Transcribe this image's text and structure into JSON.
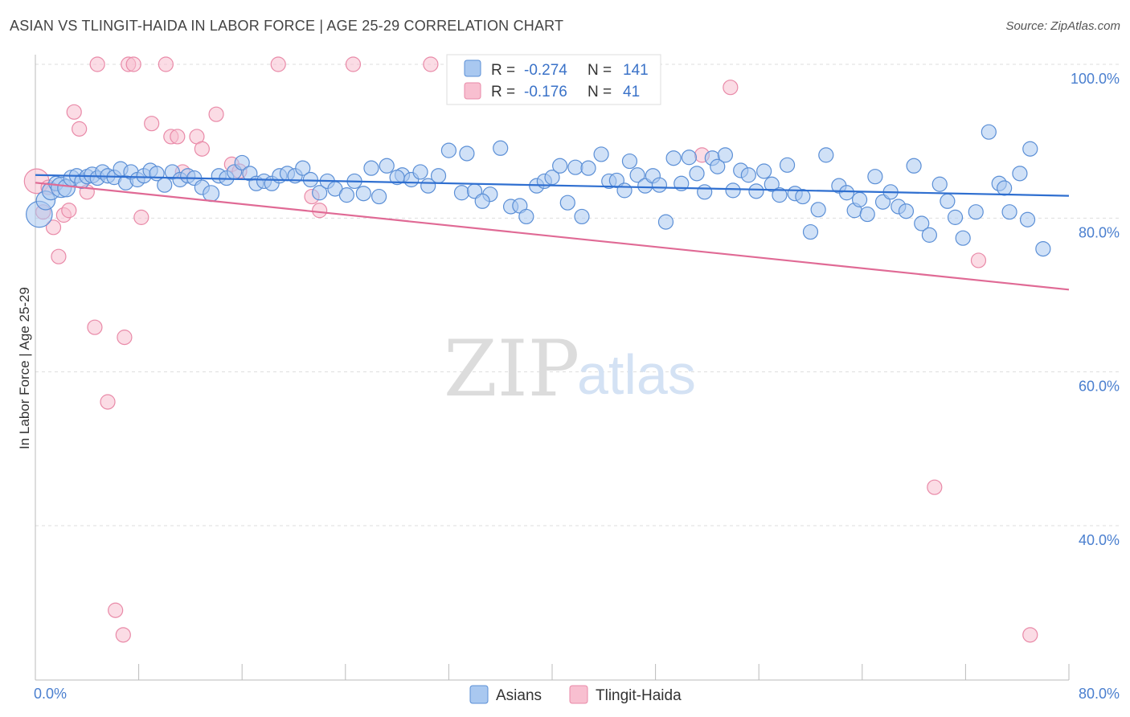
{
  "title": "ASIAN VS TLINGIT-HAIDA IN LABOR FORCE | AGE 25-29 CORRELATION CHART",
  "source": "Source: ZipAtlas.com",
  "watermark": {
    "zip": "ZIP",
    "atlas": "atlas"
  },
  "colors": {
    "asian_fill": "#a9c8f0",
    "asian_stroke": "#5b8fd6",
    "asian_line": "#2f6fd0",
    "tlingit_fill": "#f8bfd0",
    "tlingit_stroke": "#e98aa8",
    "tlingit_line": "#e06a95",
    "tick_label": "#4a7fcf",
    "grid": "#dddddd"
  },
  "legend": {
    "r_label": "R =",
    "n_label": "N =",
    "rows": [
      {
        "r": "-0.274",
        "n": "141"
      },
      {
        "r": "-0.176",
        "n": "41"
      }
    ]
  },
  "chart_data": {
    "type": "scatter",
    "xlabel": "",
    "ylabel": "In Labor Force | Age 25-29",
    "xlim": [
      0,
      80
    ],
    "ylim": [
      22,
      101
    ],
    "x_tick_labels": {
      "left": "0.0%",
      "right": "80.0%"
    },
    "y_ticks": [
      {
        "value": 100,
        "label": "100.0%"
      },
      {
        "value": 80,
        "label": "80.0%"
      },
      {
        "value": 60,
        "label": "60.0%"
      },
      {
        "value": 40,
        "label": "40.0%"
      }
    ],
    "grid": true,
    "legend_position": "top-center",
    "series": [
      {
        "name": "Asians",
        "trend": {
          "x": [
            0,
            80
          ],
          "y": [
            85.6,
            82.9
          ]
        },
        "points": [
          [
            0.3,
            80.5,
            1.8
          ],
          [
            0.8,
            82.3,
            1.3
          ],
          [
            1.2,
            83.5,
            1.2
          ],
          [
            1.6,
            84.5,
            1.0
          ],
          [
            2.0,
            84.0,
            1.4
          ],
          [
            2.4,
            83.9,
            1.2
          ],
          [
            2.8,
            85.2,
            1.1
          ],
          [
            3.2,
            85.5,
            1.0
          ],
          [
            3.6,
            84.8,
            1.0
          ],
          [
            4.0,
            85.4,
            1.0
          ],
          [
            4.4,
            85.6,
            1.1
          ],
          [
            4.8,
            85.2,
            1.0
          ],
          [
            5.2,
            86.0,
            1.0
          ],
          [
            5.6,
            85.5,
            1.0
          ],
          [
            6.1,
            85.3,
            1.0
          ],
          [
            6.6,
            86.4,
            1.0
          ],
          [
            7.0,
            84.6,
            1.0
          ],
          [
            7.4,
            86.0,
            1.0
          ],
          [
            7.9,
            85.0,
            1.0
          ],
          [
            8.4,
            85.5,
            1.0
          ],
          [
            8.9,
            86.2,
            1.0
          ],
          [
            9.4,
            85.8,
            1.0
          ],
          [
            10.0,
            84.3,
            1.0
          ],
          [
            10.6,
            86.0,
            1.0
          ],
          [
            11.2,
            85.0,
            1.0
          ],
          [
            11.8,
            85.5,
            1.0
          ],
          [
            12.3,
            85.2,
            1.0
          ],
          [
            12.9,
            84.0,
            1.0
          ],
          [
            13.6,
            83.2,
            1.1
          ],
          [
            14.2,
            85.5,
            1.0
          ],
          [
            14.8,
            85.2,
            1.0
          ],
          [
            15.4,
            86.0,
            1.0
          ],
          [
            16.0,
            87.2,
            1.0
          ],
          [
            16.6,
            85.8,
            1.0
          ],
          [
            17.1,
            84.5,
            1.0
          ],
          [
            17.7,
            84.8,
            1.0
          ],
          [
            18.3,
            84.5,
            1.0
          ],
          [
            18.9,
            85.5,
            1.0
          ],
          [
            19.5,
            85.8,
            1.0
          ],
          [
            20.1,
            85.5,
            1.0
          ],
          [
            20.7,
            86.5,
            1.0
          ],
          [
            21.3,
            85.0,
            1.0
          ],
          [
            22.0,
            83.3,
            1.0
          ],
          [
            22.6,
            84.8,
            1.0
          ],
          [
            23.2,
            83.8,
            1.0
          ],
          [
            24.1,
            83.0,
            1.0
          ],
          [
            24.7,
            84.8,
            1.0
          ],
          [
            25.4,
            83.2,
            1.0
          ],
          [
            26.0,
            86.5,
            1.0
          ],
          [
            26.6,
            82.8,
            1.0
          ],
          [
            27.2,
            86.8,
            1.0
          ],
          [
            28.4,
            85.6,
            1.0
          ],
          [
            28.0,
            85.3,
            1.0
          ],
          [
            29.1,
            85.0,
            1.0
          ],
          [
            29.8,
            86.0,
            1.0
          ],
          [
            30.4,
            84.2,
            1.0
          ],
          [
            31.2,
            85.5,
            1.0
          ],
          [
            32.0,
            88.8,
            1.0
          ],
          [
            33.0,
            83.3,
            1.0
          ],
          [
            33.4,
            88.4,
            1.0
          ],
          [
            34.0,
            83.5,
            1.0
          ],
          [
            35.2,
            83.1,
            1.0
          ],
          [
            34.6,
            82.2,
            1.0
          ],
          [
            36.0,
            89.1,
            1.0
          ],
          [
            36.8,
            81.5,
            1.0
          ],
          [
            37.5,
            81.6,
            1.0
          ],
          [
            38.0,
            80.2,
            1.0
          ],
          [
            38.8,
            84.2,
            1.0
          ],
          [
            39.4,
            84.8,
            1.0
          ],
          [
            40.0,
            85.3,
            1.0
          ],
          [
            40.6,
            86.8,
            1.0
          ],
          [
            41.2,
            82.0,
            1.0
          ],
          [
            41.8,
            86.6,
            1.0
          ],
          [
            42.3,
            80.2,
            1.0
          ],
          [
            42.8,
            86.5,
            1.0
          ],
          [
            43.8,
            88.3,
            1.0
          ],
          [
            44.4,
            84.8,
            1.0
          ],
          [
            45.0,
            84.9,
            1.0
          ],
          [
            45.6,
            83.6,
            1.0
          ],
          [
            46.0,
            87.4,
            1.0
          ],
          [
            46.6,
            85.6,
            1.0
          ],
          [
            47.2,
            84.2,
            1.0
          ],
          [
            47.8,
            85.5,
            1.0
          ],
          [
            48.3,
            84.3,
            1.0
          ],
          [
            48.8,
            79.5,
            1.0
          ],
          [
            49.4,
            87.8,
            1.0
          ],
          [
            50.0,
            84.5,
            1.0
          ],
          [
            50.6,
            87.9,
            1.0
          ],
          [
            51.2,
            85.8,
            1.0
          ],
          [
            51.8,
            83.4,
            1.0
          ],
          [
            52.4,
            87.8,
            1.0
          ],
          [
            52.8,
            86.7,
            1.0
          ],
          [
            53.4,
            88.2,
            1.0
          ],
          [
            54.0,
            83.6,
            1.0
          ],
          [
            54.6,
            86.2,
            1.0
          ],
          [
            55.2,
            85.6,
            1.0
          ],
          [
            55.8,
            83.5,
            1.0
          ],
          [
            56.4,
            86.1,
            1.0
          ],
          [
            57.0,
            84.4,
            1.0
          ],
          [
            57.6,
            83.0,
            1.0
          ],
          [
            58.2,
            86.9,
            1.0
          ],
          [
            58.8,
            83.2,
            1.0
          ],
          [
            59.4,
            82.8,
            1.0
          ],
          [
            60.0,
            78.2,
            1.0
          ],
          [
            60.6,
            81.1,
            1.0
          ],
          [
            61.2,
            88.2,
            1.0
          ],
          [
            62.2,
            84.2,
            1.0
          ],
          [
            62.8,
            83.3,
            1.0
          ],
          [
            63.4,
            81.0,
            1.0
          ],
          [
            63.8,
            82.4,
            1.0
          ],
          [
            64.4,
            80.5,
            1.0
          ],
          [
            65.0,
            85.4,
            1.0
          ],
          [
            65.6,
            82.1,
            1.0
          ],
          [
            66.2,
            83.4,
            1.0
          ],
          [
            66.8,
            81.5,
            1.0
          ],
          [
            67.4,
            80.9,
            1.0
          ],
          [
            68.0,
            86.8,
            1.0
          ],
          [
            68.6,
            79.3,
            1.0
          ],
          [
            69.2,
            77.8,
            1.0
          ],
          [
            70.0,
            84.4,
            1.0
          ],
          [
            70.6,
            82.2,
            1.0
          ],
          [
            71.2,
            80.1,
            1.0
          ],
          [
            71.8,
            77.4,
            1.0
          ],
          [
            72.8,
            80.8,
            1.0
          ],
          [
            73.8,
            91.2,
            1.0
          ],
          [
            74.6,
            84.5,
            1.0
          ],
          [
            75.0,
            83.9,
            1.0
          ],
          [
            75.4,
            80.8,
            1.0
          ],
          [
            76.2,
            85.8,
            1.0
          ],
          [
            76.8,
            79.8,
            1.0
          ],
          [
            77.0,
            89.0,
            1.0
          ],
          [
            78.0,
            76.0,
            1.0
          ]
        ]
      },
      {
        "name": "Tlingit-Haida",
        "trend": {
          "x": [
            0,
            80
          ],
          "y": [
            84.6,
            70.7
          ]
        },
        "points": [
          [
            0.1,
            84.8,
            1.7
          ],
          [
            0.6,
            80.8,
            1.0
          ],
          [
            1.0,
            84.0,
            1.0
          ],
          [
            1.4,
            78.8,
            1.0
          ],
          [
            1.8,
            75.0,
            1.0
          ],
          [
            2.2,
            80.4,
            1.0
          ],
          [
            2.6,
            81.0,
            1.0
          ],
          [
            3.0,
            93.8,
            1.0
          ],
          [
            3.4,
            91.6,
            1.0
          ],
          [
            4.0,
            83.4,
            1.0
          ],
          [
            4.6,
            65.8,
            1.0
          ],
          [
            4.8,
            100.0,
            1.0
          ],
          [
            5.6,
            56.1,
            1.0
          ],
          [
            6.2,
            29.0,
            1.0
          ],
          [
            6.8,
            25.8,
            1.0
          ],
          [
            6.9,
            64.5,
            1.0
          ],
          [
            7.2,
            100.0,
            1.0
          ],
          [
            7.6,
            100.0,
            1.0
          ],
          [
            8.2,
            80.1,
            1.0
          ],
          [
            9.0,
            92.3,
            1.0
          ],
          [
            10.1,
            100.0,
            1.0
          ],
          [
            10.5,
            90.6,
            1.0
          ],
          [
            11.0,
            90.6,
            1.0
          ],
          [
            11.4,
            86.0,
            1.0
          ],
          [
            12.5,
            90.6,
            1.0
          ],
          [
            12.9,
            89.0,
            1.0
          ],
          [
            14.0,
            93.5,
            1.0
          ],
          [
            15.2,
            87.0,
            1.0
          ],
          [
            15.8,
            86.1,
            1.0
          ],
          [
            18.8,
            100.0,
            1.0
          ],
          [
            21.4,
            82.8,
            1.0
          ],
          [
            22.0,
            81.0,
            1.0
          ],
          [
            24.6,
            100.0,
            1.0
          ],
          [
            30.6,
            100.0,
            1.0
          ],
          [
            36.4,
            100.0,
            1.0
          ],
          [
            37.0,
            100.0,
            1.0
          ],
          [
            44.2,
            97.0,
            1.0
          ],
          [
            45.2,
            97.0,
            1.0
          ],
          [
            51.6,
            88.2,
            1.0
          ],
          [
            53.8,
            97.0,
            1.0
          ],
          [
            69.6,
            45.0,
            1.0
          ],
          [
            73.0,
            74.5,
            1.0
          ],
          [
            77.0,
            25.8,
            1.0
          ]
        ]
      }
    ]
  }
}
